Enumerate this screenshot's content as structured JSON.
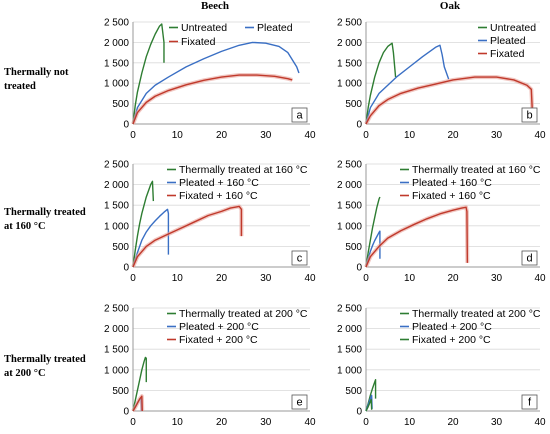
{
  "column_titles": [
    "Beech",
    "Oak"
  ],
  "row_titles": [
    "Thermally not treated",
    "Thermally treated at 160 °C",
    "Thermally treated at 200 °C"
  ],
  "colors": {
    "green": "#2e7d32",
    "blue": "#3a6fc4",
    "red": "#c0392b",
    "grid": "#d9d9d9",
    "axis": "#999999"
  },
  "chart_data": [
    {
      "type": "line",
      "panel_label": "a",
      "xlim": [
        0,
        40
      ],
      "ylim": [
        0,
        2500
      ],
      "xticks": [
        0,
        10,
        20,
        30,
        40
      ],
      "yticks": [
        "0",
        "500",
        "1 000",
        "1 500",
        "2 000",
        "2 500"
      ],
      "grid": "horizontal",
      "legend_placement": "top-right",
      "legend_layout": "two-rows",
      "series": [
        {
          "name": "Untreated",
          "color": "green",
          "x": [
            0,
            0.5,
            1,
            2,
            3,
            4,
            5,
            6,
            6.5,
            7,
            7
          ],
          "y": [
            0,
            450,
            780,
            1250,
            1650,
            1950,
            2200,
            2400,
            2450,
            2000,
            1500
          ]
        },
        {
          "name": "Pleated",
          "color": "blue",
          "x": [
            0,
            1,
            3,
            5,
            8,
            12,
            16,
            20,
            24,
            27,
            30,
            33,
            35,
            37,
            37.5
          ],
          "y": [
            0,
            400,
            750,
            950,
            1150,
            1400,
            1600,
            1780,
            1930,
            2000,
            1980,
            1900,
            1750,
            1400,
            1250
          ]
        },
        {
          "name": "Fixated",
          "color": "red",
          "x": [
            0,
            1,
            3,
            5,
            8,
            12,
            16,
            20,
            24,
            28,
            32,
            35,
            36
          ],
          "y": [
            0,
            280,
            530,
            680,
            820,
            960,
            1070,
            1150,
            1200,
            1200,
            1170,
            1110,
            1080
          ]
        }
      ]
    },
    {
      "type": "line",
      "panel_label": "b",
      "xlim": [
        0,
        40
      ],
      "ylim": [
        0,
        2500
      ],
      "xticks": [
        0,
        10,
        20,
        30,
        40
      ],
      "yticks": [
        "0",
        "500",
        "1 000",
        "1 500",
        "2 000",
        "2 500"
      ],
      "grid": "horizontal",
      "legend_placement": "top-right",
      "legend_layout": "column",
      "series": [
        {
          "name": "Untreated",
          "color": "green",
          "x": [
            0,
            0.5,
            1,
            2,
            3,
            4,
            5,
            6,
            6.3,
            6.8
          ],
          "y": [
            0,
            400,
            700,
            1150,
            1500,
            1750,
            1900,
            1980,
            1750,
            1150
          ]
        },
        {
          "name": "Pleated",
          "color": "blue",
          "x": [
            0,
            1,
            3,
            5,
            7,
            10,
            13,
            16,
            17,
            17.5,
            18,
            19
          ],
          "y": [
            0,
            400,
            750,
            950,
            1150,
            1400,
            1650,
            1880,
            1930,
            1700,
            1400,
            1100
          ]
        },
        {
          "name": "Fixated",
          "color": "red",
          "x": [
            0,
            1,
            3,
            5,
            8,
            12,
            16,
            20,
            25,
            30,
            34,
            37,
            38,
            38.2
          ],
          "y": [
            0,
            200,
            450,
            600,
            750,
            880,
            980,
            1080,
            1150,
            1150,
            1080,
            950,
            850,
            400
          ]
        }
      ]
    },
    {
      "type": "line",
      "panel_label": "c",
      "xlim": [
        0,
        40
      ],
      "ylim": [
        0,
        2500
      ],
      "xticks": [
        0,
        10,
        20,
        30,
        40
      ],
      "yticks": [
        "0",
        "500",
        "1 000",
        "1 500",
        "2 000",
        "2 500"
      ],
      "grid": "horizontal",
      "legend_placement": "top-right",
      "legend_layout": "column",
      "series": [
        {
          "name": "Thermally treated at 160 °C",
          "color": "green",
          "x": [
            0,
            0.5,
            1,
            1.5,
            2,
            3,
            4,
            4.4,
            4.6
          ],
          "y": [
            0,
            400,
            750,
            1050,
            1300,
            1700,
            2000,
            2080,
            1600
          ]
        },
        {
          "name": "Pleated + 160 °C",
          "color": "blue",
          "x": [
            0,
            1,
            2,
            3,
            4,
            5,
            6,
            7,
            7.8,
            8,
            8
          ],
          "y": [
            0,
            350,
            650,
            850,
            1000,
            1120,
            1230,
            1330,
            1400,
            1300,
            300
          ]
        },
        {
          "name": "Fixated + 160 °C",
          "color": "red",
          "x": [
            0,
            1,
            3,
            5,
            8,
            11,
            14,
            17,
            20,
            22,
            24,
            24.5,
            24.5
          ],
          "y": [
            0,
            250,
            500,
            650,
            800,
            950,
            1100,
            1250,
            1350,
            1430,
            1470,
            1400,
            750
          ]
        }
      ]
    },
    {
      "type": "line",
      "panel_label": "d",
      "xlim": [
        0,
        40
      ],
      "ylim": [
        0,
        2500
      ],
      "xticks": [
        0,
        10,
        20,
        30,
        40
      ],
      "yticks": [
        "0",
        "500",
        "1 000",
        "1 500",
        "2 000",
        "2 500"
      ],
      "grid": "horizontal",
      "legend_placement": "top-right",
      "legend_layout": "column",
      "series": [
        {
          "name": "Thermally treated at 160 °C",
          "color": "green",
          "x": [
            0,
            0.5,
            1,
            1.5,
            2,
            2.5,
            3,
            3.2
          ],
          "y": [
            0,
            350,
            650,
            950,
            1200,
            1450,
            1650,
            1700
          ]
        },
        {
          "name": "Pleated + 160 °C",
          "color": "blue",
          "x": [
            0,
            0.5,
            1,
            1.5,
            2,
            2.5,
            3,
            3.2,
            3.2
          ],
          "y": [
            0,
            200,
            380,
            520,
            640,
            740,
            840,
            870,
            200
          ]
        },
        {
          "name": "Fixated + 160 °C",
          "color": "red",
          "x": [
            0,
            1,
            3,
            5,
            8,
            11,
            14,
            17,
            20,
            22,
            23,
            23.2,
            23.3
          ],
          "y": [
            0,
            250,
            500,
            700,
            880,
            1030,
            1170,
            1290,
            1380,
            1430,
            1450,
            1350,
            100
          ]
        }
      ]
    },
    {
      "type": "line",
      "panel_label": "e",
      "xlim": [
        0,
        40
      ],
      "ylim": [
        0,
        2500
      ],
      "xticks": [
        0,
        10,
        20,
        30,
        40
      ],
      "yticks": [
        "0",
        "500",
        "1 000",
        "1 500",
        "2 000",
        "2 500"
      ],
      "grid": "horizontal",
      "legend_placement": "top-right",
      "legend_layout": "column",
      "series": [
        {
          "name": "Thermally treated at 200 °C",
          "color": "green",
          "x": [
            0,
            0.5,
            1,
            1.5,
            2,
            2.5,
            2.8,
            3,
            3
          ],
          "y": [
            0,
            250,
            500,
            750,
            1000,
            1200,
            1300,
            1280,
            700
          ]
        },
        {
          "name": "Pleated + 200 °C",
          "color": "blue",
          "x": [
            0,
            0.5,
            1,
            1.5,
            1.8,
            1.9
          ],
          "y": [
            0,
            100,
            200,
            280,
            320,
            0
          ]
        },
        {
          "name": "Fixated + 200 °C",
          "color": "red",
          "x": [
            0,
            0.5,
            1,
            1.5,
            2,
            2.1
          ],
          "y": [
            0,
            90,
            190,
            290,
            360,
            0
          ]
        }
      ]
    },
    {
      "type": "line",
      "panel_label": "f",
      "xlim": [
        0,
        40
      ],
      "ylim": [
        0,
        2500
      ],
      "xticks": [
        0,
        10,
        20,
        30,
        40
      ],
      "yticks": [
        "0",
        "500",
        "1 000",
        "1 500",
        "2 000",
        "2 500"
      ],
      "grid": "horizontal",
      "legend_placement": "top-right",
      "legend_layout": "column",
      "series": [
        {
          "name": "Thermally treated at 200 °C",
          "color": "green",
          "x": [
            0,
            0.5,
            1,
            1.5,
            2,
            2.2,
            2.2
          ],
          "y": [
            0,
            180,
            380,
            550,
            700,
            760,
            300
          ]
        },
        {
          "name": "Pleated + 200 °C",
          "color": "blue",
          "x": [
            0,
            0.5,
            1,
            1.3,
            1.4
          ],
          "y": [
            0,
            150,
            300,
            380,
            50
          ]
        },
        {
          "name": "Fixated + 200 °C",
          "color": "green",
          "x": [
            0,
            0.4,
            0.8,
            1.2,
            1.3
          ],
          "y": [
            0,
            80,
            180,
            280,
            30
          ]
        }
      ]
    }
  ]
}
